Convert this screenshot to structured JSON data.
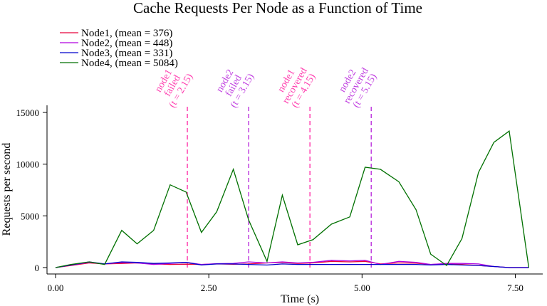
{
  "chart_data": {
    "type": "line",
    "title": "Cache Requests Per Node as a Function of Time",
    "xlabel": "Time (s)",
    "ylabel": "Requests per second",
    "xlim": [
      0,
      7.75
    ],
    "ylim": [
      0,
      15000
    ],
    "xticks": [
      0,
      2.5,
      5,
      7.5
    ],
    "xtick_labels": [
      "0.00",
      "2.50",
      "5.00",
      "7.50"
    ],
    "yticks": [
      0,
      5000,
      10000,
      15000
    ],
    "ytick_labels": [
      "0",
      "5000",
      "10000",
      "15000"
    ],
    "grid": false,
    "legend_position": "top-left",
    "x": [
      0,
      0.25,
      0.55,
      0.8,
      1.08,
      1.33,
      1.6,
      1.87,
      2.13,
      2.38,
      2.63,
      2.9,
      3.15,
      3.45,
      3.7,
      3.95,
      4.2,
      4.5,
      4.8,
      5.05,
      5.3,
      5.6,
      5.88,
      6.12,
      6.38,
      6.63,
      6.9,
      7.15,
      7.4,
      7.72
    ],
    "series": [
      {
        "name": "Node1, (mean = 376)",
        "color": "#e8003c",
        "values": [
          0,
          200,
          450,
          350,
          400,
          450,
          350,
          300,
          330,
          300,
          350,
          320,
          350,
          450,
          500,
          400,
          450,
          600,
          550,
          600,
          350,
          450,
          420,
          300,
          350,
          300,
          200,
          100,
          0,
          0
        ]
      },
      {
        "name": "Node2, (mean = 448)",
        "color": "#b000e0",
        "values": [
          0,
          250,
          500,
          350,
          500,
          450,
          300,
          400,
          500,
          300,
          380,
          400,
          550,
          450,
          550,
          450,
          500,
          700,
          650,
          700,
          300,
          600,
          500,
          300,
          400,
          400,
          350,
          100,
          0,
          0
        ]
      },
      {
        "name": "Node3, (mean = 331)",
        "color": "#0000cc",
        "values": [
          0,
          250,
          550,
          350,
          550,
          500,
          400,
          450,
          500,
          250,
          350,
          350,
          300,
          250,
          350,
          300,
          300,
          300,
          300,
          300,
          300,
          300,
          300,
          250,
          300,
          250,
          200,
          100,
          0,
          0
        ]
      },
      {
        "name": "Node4, (mean = 5084)",
        "color": "#007000",
        "values": [
          0,
          300,
          550,
          300,
          3600,
          2300,
          3600,
          8000,
          7300,
          3400,
          5400,
          9500,
          4600,
          600,
          7000,
          2200,
          2700,
          4200,
          4900,
          9700,
          9500,
          8300,
          5600,
          1300,
          200,
          2800,
          9200,
          12100,
          13200,
          0
        ]
      }
    ],
    "annotations": [
      {
        "x": 2.15,
        "lines": [
          "node1",
          "failed",
          "(t = 2.15)"
        ],
        "color": "#ff40b0"
      },
      {
        "x": 3.15,
        "lines": [
          "node2",
          "failed",
          "(t = 3.15)"
        ],
        "color": "#c040e0"
      },
      {
        "x": 4.15,
        "lines": [
          "node1",
          "recovered",
          "(t = 4.15)"
        ],
        "color": "#ff40b0"
      },
      {
        "x": 5.15,
        "lines": [
          "node2",
          "recovered",
          "(t = 5.15)"
        ],
        "color": "#c040e0"
      }
    ]
  }
}
